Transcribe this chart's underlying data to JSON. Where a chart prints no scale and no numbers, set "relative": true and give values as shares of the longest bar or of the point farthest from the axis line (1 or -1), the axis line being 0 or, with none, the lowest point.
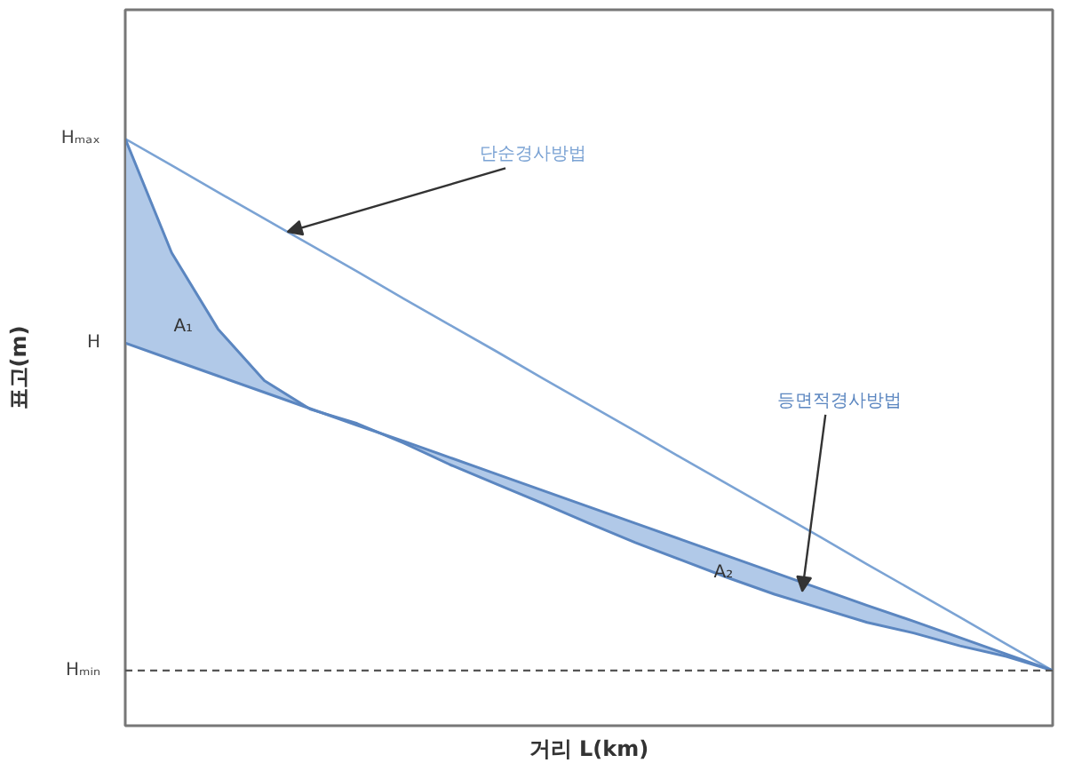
{
  "chart_data": {
    "type": "line",
    "relative": true,
    "xlabel": "거리 L(km)",
    "ylabel": "표고(m)",
    "categories": [
      null,
      null,
      null,
      null,
      null,
      null,
      null,
      null,
      null,
      null,
      null,
      null,
      null,
      null,
      null,
      null,
      null,
      null,
      null,
      null,
      null
    ],
    "series": [
      {
        "name": "단순경사방법",
        "color": "#7ba3d4",
        "values": [
          1.0,
          0.955,
          0.909,
          0.864,
          0.819,
          0.774,
          0.728,
          0.683,
          0.638,
          0.592,
          0.547,
          0.502,
          0.456,
          0.411,
          0.366,
          0.321,
          0.275,
          0.23,
          0.185,
          0.139,
          0.094
        ]
      },
      {
        "name": "등면적경사방법",
        "color": "#5b86c0",
        "values": [
          0.652,
          0.624,
          0.596,
          0.568,
          0.54,
          0.512,
          0.485,
          0.457,
          0.429,
          0.401,
          0.373,
          0.345,
          0.317,
          0.289,
          0.261,
          0.233,
          0.205,
          0.178,
          0.15,
          0.122,
          0.094
        ]
      },
      {
        "color": "#5b86c0",
        "values": [
          1.0,
          0.806,
          0.676,
          0.588,
          0.539,
          0.515,
          0.482,
          0.445,
          0.412,
          0.379,
          0.345,
          0.312,
          0.282,
          0.252,
          0.224,
          0.2,
          0.176,
          0.158,
          0.136,
          0.118,
          0.094
        ],
        "lower": [
          0.652,
          0.624,
          0.596,
          0.568,
          0.539,
          0.512,
          0.482,
          0.445,
          0.412,
          0.379,
          0.345,
          0.312,
          0.282,
          0.252,
          0.224,
          0.2,
          0.176,
          0.158,
          0.136,
          0.118,
          0.094
        ],
        "upper": [
          1.0,
          0.806,
          0.676,
          0.588,
          0.54,
          0.515,
          0.485,
          0.457,
          0.429,
          0.401,
          0.373,
          0.345,
          0.317,
          0.289,
          0.261,
          0.233,
          0.205,
          0.178,
          0.15,
          0.122,
          0.094
        ]
      }
    ],
    "ref_lines": [
      {
        "axis": "y",
        "value": 0.094,
        "label": "Hₘᵢₙ",
        "color": "#555555",
        "line_style": "dashed"
      }
    ],
    "annotations": [
      "Hₘₐₓ",
      "H",
      "A₁",
      "A₂"
    ],
    "grid": false,
    "legend": false
  }
}
